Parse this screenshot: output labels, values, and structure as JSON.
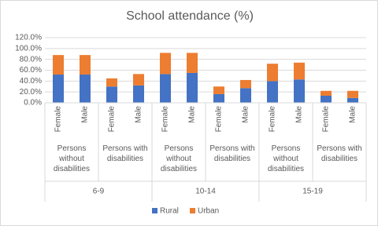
{
  "chart_data": {
    "type": "bar",
    "stacked": true,
    "title": "School attendance (%)",
    "categories": [
      "Female",
      "Male",
      "Female",
      "Male",
      "Female",
      "Male",
      "Female",
      "Male",
      "Female",
      "Male",
      "Female",
      "Male"
    ],
    "subgroups": [
      "Persons without disabilities",
      "Persons with disabilities",
      "Persons without disabilities",
      "Persons with disabilities",
      "Persons without disabilities",
      "Persons with disabilities"
    ],
    "groups": [
      "6-9",
      "10-14",
      "15-19"
    ],
    "series": [
      {
        "name": "Rural",
        "color": "#4472c4",
        "values": [
          52,
          52,
          30,
          32,
          53,
          55,
          16,
          27,
          40,
          43,
          13,
          9
        ]
      },
      {
        "name": "Urban",
        "color": "#ed7d31",
        "values": [
          36,
          36,
          15,
          21,
          39,
          37,
          14,
          15,
          32,
          31,
          9,
          13
        ]
      }
    ],
    "ylim": [
      0,
      120
    ],
    "yticks": [
      {
        "value": 0,
        "label": "0.0%"
      },
      {
        "value": 20,
        "label": "20.0%"
      },
      {
        "value": 40,
        "label": "40.0%"
      },
      {
        "value": 60,
        "label": "60.0%"
      },
      {
        "value": 80,
        "label": "80.0%"
      },
      {
        "value": 100,
        "label": "100.0%"
      },
      {
        "value": 120,
        "label": "120.0%"
      }
    ],
    "grid": true,
    "legend": "bottom"
  }
}
